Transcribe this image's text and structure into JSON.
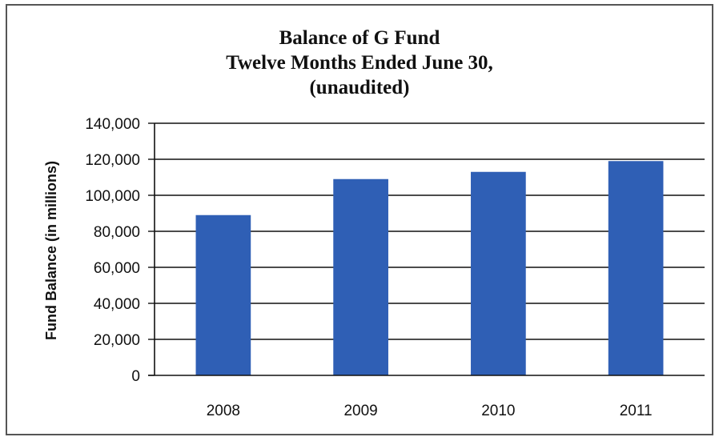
{
  "chart_data": {
    "type": "bar",
    "title": "Balance of G Fund",
    "subtitle": [
      "Twelve Months Ended June 30,",
      "(unaudited)"
    ],
    "xlabel": "",
    "ylabel": "Fund Balance (in millions)",
    "categories": [
      "2008",
      "2009",
      "2010",
      "2011"
    ],
    "values": [
      89000,
      109000,
      113000,
      119000
    ],
    "ylim": [
      0,
      140000
    ],
    "yticks": [
      0,
      20000,
      40000,
      60000,
      80000,
      100000,
      120000,
      140000
    ],
    "ytick_labels": [
      "0",
      "20,000",
      "40,000",
      "60,000",
      "80,000",
      "100,000",
      "120,000",
      "140,000"
    ],
    "grid": true,
    "bar_color": "#2f5fb5",
    "gridline_color": "#111111"
  }
}
